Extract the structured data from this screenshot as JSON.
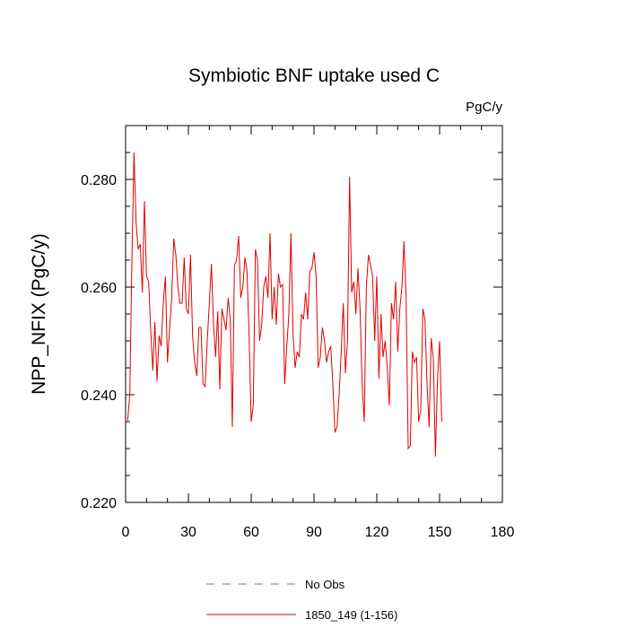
{
  "chart_data": {
    "type": "line",
    "title": "Symbiotic BNF uptake used C",
    "units": "PgC/y",
    "xlabel": "",
    "ylabel": "NPP_NFIX  (PgC/y)",
    "xlim": [
      0,
      180
    ],
    "ylim": [
      0.22,
      0.29
    ],
    "x_ticks": [
      "0",
      "30",
      "60",
      "90",
      "120",
      "150",
      "180"
    ],
    "y_ticks": [
      "0.220",
      "0.240",
      "0.260",
      "0.280"
    ],
    "grid": false,
    "legend_placement": "bottom-center",
    "legend": [
      {
        "name": "No Obs",
        "color": "#6e6ee6",
        "style": "dashed"
      },
      {
        "name": "1850_149 (1-156)",
        "color": "#e00000",
        "style": "solid"
      }
    ],
    "series": [
      {
        "name": "1850_149 (1-156)",
        "color": "#e00000",
        "x_start": 1,
        "values": [
          0.2352,
          0.2401,
          0.2645,
          0.285,
          0.272,
          0.267,
          0.268,
          0.259,
          0.276,
          0.262,
          0.261,
          0.252,
          0.2445,
          0.2535,
          0.2425,
          0.251,
          0.249,
          0.257,
          0.262,
          0.246,
          0.252,
          0.258,
          0.269,
          0.266,
          0.26,
          0.257,
          0.257,
          0.2655,
          0.256,
          0.255,
          0.266,
          0.251,
          0.246,
          0.2435,
          0.2525,
          0.2525,
          0.242,
          0.2415,
          0.25,
          0.257,
          0.2643,
          0.253,
          0.247,
          0.2555,
          0.241,
          0.256,
          0.254,
          0.252,
          0.258,
          0.254,
          0.234,
          0.264,
          0.265,
          0.2695,
          0.258,
          0.26,
          0.2655,
          0.263,
          0.251,
          0.235,
          0.238,
          0.267,
          0.265,
          0.25,
          0.253,
          0.26,
          0.262,
          0.258,
          0.27,
          0.254,
          0.26,
          0.253,
          0.2625,
          0.26,
          0.2605,
          0.242,
          0.249,
          0.255,
          0.27,
          0.251,
          0.245,
          0.248,
          0.247,
          0.255,
          0.254,
          0.259,
          0.254,
          0.263,
          0.2635,
          0.2665,
          0.262,
          0.245,
          0.247,
          0.2525,
          0.25,
          0.246,
          0.248,
          0.249,
          0.242,
          0.233,
          0.234,
          0.24,
          0.248,
          0.257,
          0.244,
          0.25,
          0.2805,
          0.259,
          0.261,
          0.255,
          0.2635,
          0.256,
          0.242,
          0.235,
          0.26,
          0.266,
          0.264,
          0.262,
          0.25,
          0.262,
          0.243,
          0.255,
          0.247,
          0.25,
          0.245,
          0.238,
          0.257,
          0.254,
          0.261,
          0.248,
          0.256,
          0.26,
          0.2685,
          0.258,
          0.23,
          0.2305,
          0.248,
          0.246,
          0.247,
          0.235,
          0.237,
          0.256,
          0.254,
          0.242,
          0.234,
          0.2505,
          0.247,
          0.2285,
          0.243,
          0.25,
          0.235
        ]
      }
    ]
  }
}
